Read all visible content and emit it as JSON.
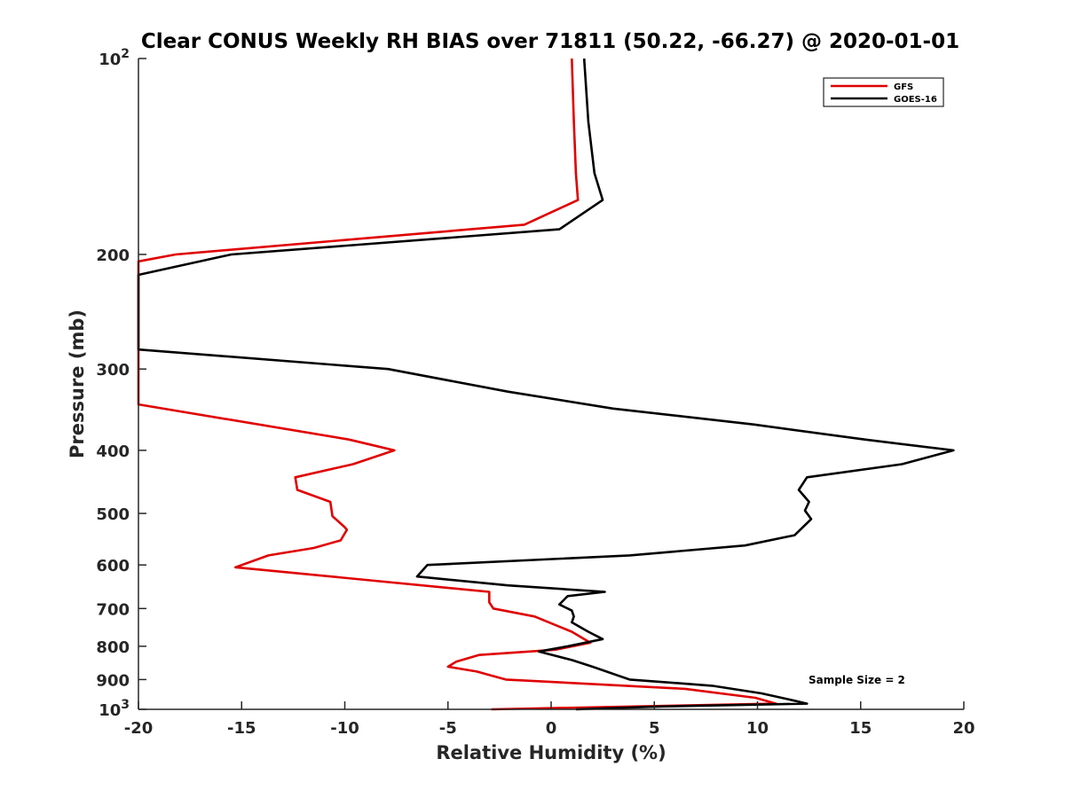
{
  "chart_data": {
    "type": "line",
    "title": "Clear CONUS Weekly RH BIAS over 71811 (50.22, -66.27) @ 2020-01-01",
    "xlabel": "Relative Humidity (%)",
    "ylabel": "Pressure (mb)",
    "xlim": [
      -20,
      20
    ],
    "ylim": [
      100,
      1000
    ],
    "y_scale": "log",
    "y_reversed": true,
    "x_ticks": [
      -20,
      -15,
      -10,
      -5,
      0,
      5,
      10,
      15,
      20
    ],
    "x_tick_labels": [
      "-20",
      "-15",
      "-10",
      "-5",
      "0",
      "5",
      "10",
      "15",
      "20"
    ],
    "y_ticks": [
      {
        "value": 100,
        "base": "10",
        "exp": "2"
      },
      {
        "value": 200,
        "label": "200"
      },
      {
        "value": 300,
        "label": "300"
      },
      {
        "value": 400,
        "label": "400"
      },
      {
        "value": 500,
        "label": "500"
      },
      {
        "value": 600,
        "label": "600"
      },
      {
        "value": 700,
        "label": "700"
      },
      {
        "value": 800,
        "label": "800"
      },
      {
        "value": 900,
        "label": "900"
      },
      {
        "value": 1000,
        "base": "10",
        "exp": "3"
      }
    ],
    "legend_position": "top-right",
    "grid": false,
    "annotation": "Sample Size = 2",
    "series": [
      {
        "name": "GFS",
        "color": "#e00000",
        "points": [
          [
            1.0,
            100
          ],
          [
            1.1,
            125
          ],
          [
            1.2,
            150
          ],
          [
            1.3,
            165
          ],
          [
            -1.3,
            180
          ],
          [
            -18.2,
            200
          ],
          [
            -20.0,
            205
          ],
          [
            -20.0,
            340
          ],
          [
            -9.8,
            385
          ],
          [
            -7.6,
            400
          ],
          [
            -9.6,
            420
          ],
          [
            -12.4,
            440
          ],
          [
            -12.3,
            460
          ],
          [
            -10.7,
            480
          ],
          [
            -10.6,
            505
          ],
          [
            -10.0,
            525
          ],
          [
            -9.9,
            530
          ],
          [
            -10.2,
            550
          ],
          [
            -11.5,
            565
          ],
          [
            -13.7,
            580
          ],
          [
            -15.3,
            605
          ],
          [
            -3.0,
            660
          ],
          [
            -3.0,
            685
          ],
          [
            -2.8,
            700
          ],
          [
            -0.8,
            720
          ],
          [
            1.0,
            760
          ],
          [
            1.9,
            790
          ],
          [
            0.2,
            810
          ],
          [
            -3.5,
            825
          ],
          [
            -4.6,
            845
          ],
          [
            -5.0,
            860
          ],
          [
            -3.6,
            875
          ],
          [
            -2.2,
            900
          ],
          [
            6.5,
            930
          ],
          [
            9.9,
            960
          ],
          [
            10.9,
            980
          ],
          [
            -2.9,
            1000
          ]
        ]
      },
      {
        "name": "GOES-16",
        "color": "#000000",
        "points": [
          [
            1.6,
            100
          ],
          [
            1.8,
            125
          ],
          [
            2.1,
            150
          ],
          [
            2.5,
            165
          ],
          [
            0.4,
            183
          ],
          [
            -15.5,
            200
          ],
          [
            -20.0,
            215
          ],
          [
            -20.0,
            280
          ],
          [
            -7.9,
            300
          ],
          [
            -2.1,
            325
          ],
          [
            3.0,
            345
          ],
          [
            9.8,
            365
          ],
          [
            15.2,
            385
          ],
          [
            19.5,
            400
          ],
          [
            17.0,
            420
          ],
          [
            12.4,
            440
          ],
          [
            12.0,
            460
          ],
          [
            12.5,
            480
          ],
          [
            12.3,
            495
          ],
          [
            12.6,
            510
          ],
          [
            11.8,
            540
          ],
          [
            9.4,
            560
          ],
          [
            3.8,
            580
          ],
          [
            -6.0,
            600
          ],
          [
            -6.5,
            625
          ],
          [
            -2.1,
            645
          ],
          [
            2.6,
            660
          ],
          [
            0.8,
            670
          ],
          [
            0.4,
            690
          ],
          [
            1.0,
            705
          ],
          [
            1.1,
            720
          ],
          [
            1.0,
            735
          ],
          [
            1.8,
            760
          ],
          [
            2.5,
            780
          ],
          [
            0.8,
            800
          ],
          [
            -0.6,
            815
          ],
          [
            1.0,
            840
          ],
          [
            2.0,
            860
          ],
          [
            3.8,
            900
          ],
          [
            7.8,
            920
          ],
          [
            10.2,
            945
          ],
          [
            11.8,
            970
          ],
          [
            12.4,
            980
          ],
          [
            5.3,
            990
          ],
          [
            1.2,
            1000
          ]
        ]
      }
    ]
  }
}
